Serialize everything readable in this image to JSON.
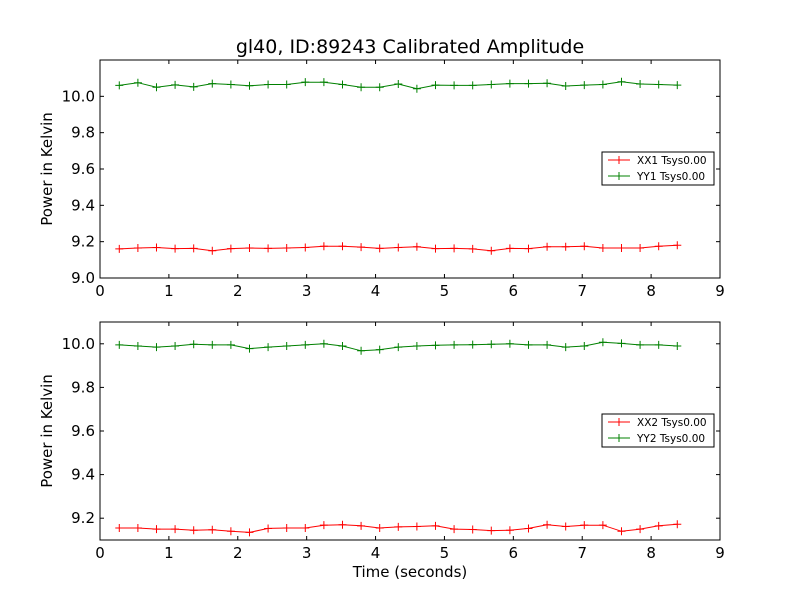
{
  "title": "gl40, ID:89243 Calibrated Amplitude",
  "xlabel": "Time (seconds)",
  "chart_data": [
    {
      "type": "line",
      "title": "gl40, ID:89243 Calibrated Amplitude",
      "xlabel": "",
      "ylabel": "Power in Kelvin",
      "xlim": [
        0,
        9
      ],
      "ylim": [
        9.0,
        10.2
      ],
      "xticks": [
        "0",
        "1",
        "2",
        "3",
        "4",
        "5",
        "6",
        "7",
        "8",
        "9"
      ],
      "yticks": [
        "9.0",
        "9.2",
        "9.4",
        "9.6",
        "9.8",
        "10.0"
      ],
      "grid": false,
      "legend_position": "right",
      "x": [
        0.28,
        0.55,
        0.82,
        1.09,
        1.36,
        1.63,
        1.9,
        2.17,
        2.44,
        2.71,
        2.98,
        3.25,
        3.52,
        3.79,
        4.06,
        4.33,
        4.6,
        4.87,
        5.14,
        5.41,
        5.68,
        5.95,
        6.22,
        6.49,
        6.76,
        7.03,
        7.3,
        7.57,
        7.84,
        8.11,
        8.38
      ],
      "series": [
        {
          "name": "XX1 Tsys0.00",
          "color": "#ff0000",
          "values": [
            9.16,
            9.165,
            9.168,
            9.162,
            9.163,
            9.15,
            9.162,
            9.165,
            9.163,
            9.165,
            9.168,
            9.175,
            9.175,
            9.17,
            9.163,
            9.168,
            9.172,
            9.162,
            9.163,
            9.16,
            9.15,
            9.163,
            9.162,
            9.172,
            9.172,
            9.175,
            9.165,
            9.165,
            9.165,
            9.175,
            9.18
          ]
        },
        {
          "name": "YY1 Tsys0.00",
          "color": "#008000",
          "values": [
            10.06,
            10.075,
            10.05,
            10.063,
            10.052,
            10.07,
            10.065,
            10.058,
            10.065,
            10.065,
            10.078,
            10.078,
            10.065,
            10.05,
            10.05,
            10.068,
            10.042,
            10.062,
            10.06,
            10.06,
            10.065,
            10.07,
            10.07,
            10.072,
            10.057,
            10.062,
            10.065,
            10.08,
            10.068,
            10.065,
            10.062
          ]
        }
      ]
    },
    {
      "type": "line",
      "title": "",
      "xlabel": "Time (seconds)",
      "ylabel": "Power in Kelvin",
      "xlim": [
        0,
        9
      ],
      "ylim": [
        9.1,
        10.1
      ],
      "xticks": [
        "0",
        "1",
        "2",
        "3",
        "4",
        "5",
        "6",
        "7",
        "8",
        "9"
      ],
      "yticks": [
        "9.2",
        "9.4",
        "9.6",
        "9.8",
        "10.0"
      ],
      "grid": false,
      "legend_position": "right",
      "x": [
        0.28,
        0.55,
        0.82,
        1.09,
        1.36,
        1.63,
        1.9,
        2.17,
        2.44,
        2.71,
        2.98,
        3.25,
        3.52,
        3.79,
        4.06,
        4.33,
        4.6,
        4.87,
        5.14,
        5.41,
        5.68,
        5.95,
        6.22,
        6.49,
        6.76,
        7.03,
        7.3,
        7.57,
        7.84,
        8.11,
        8.38
      ],
      "series": [
        {
          "name": "XX2 Tsys0.00",
          "color": "#ff0000",
          "values": [
            9.155,
            9.155,
            9.15,
            9.15,
            9.145,
            9.147,
            9.14,
            9.135,
            9.153,
            9.155,
            9.155,
            9.168,
            9.17,
            9.165,
            9.155,
            9.16,
            9.162,
            9.165,
            9.15,
            9.148,
            9.143,
            9.145,
            9.153,
            9.17,
            9.162,
            9.168,
            9.168,
            9.14,
            9.15,
            9.165,
            9.172
          ]
        },
        {
          "name": "YY2 Tsys0.00",
          "color": "#008000",
          "values": [
            9.995,
            9.99,
            9.985,
            9.99,
            9.998,
            9.995,
            9.995,
            9.978,
            9.985,
            9.99,
            9.995,
            10.0,
            9.99,
            9.968,
            9.973,
            9.985,
            9.99,
            9.993,
            9.995,
            9.996,
            9.998,
            10.0,
            9.995,
            9.995,
            9.985,
            9.99,
            10.007,
            10.002,
            9.995,
            9.995,
            9.99
          ]
        }
      ]
    }
  ]
}
